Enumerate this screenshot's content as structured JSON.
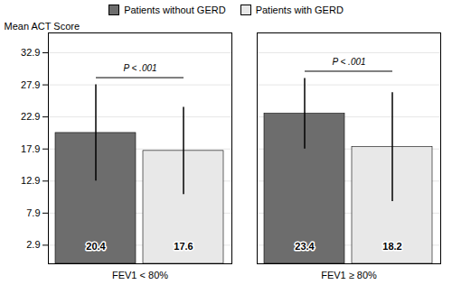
{
  "chart_data": {
    "type": "bar",
    "categories": [
      "FEV1 < 80%",
      "FEV1 ≥ 80%"
    ],
    "series": [
      {
        "name": "Patients without GERD",
        "color": "#6d6d6d",
        "values": [
          20.4,
          23.4
        ],
        "errors": [
          7.5,
          5.5
        ]
      },
      {
        "name": "Patients with GERD",
        "color": "#e8e8e8",
        "values": [
          17.6,
          18.2
        ],
        "errors": [
          6.8,
          8.5
        ]
      }
    ],
    "ylabel": "Mean ACT Score",
    "ylim": [
      0,
      36
    ],
    "yticks": [
      2.9,
      7.9,
      12.9,
      17.9,
      22.9,
      27.9,
      32.9
    ],
    "grid": true,
    "legend": "top",
    "data_labels": true,
    "annotations": [
      "P < .001",
      "P < .001"
    ]
  }
}
